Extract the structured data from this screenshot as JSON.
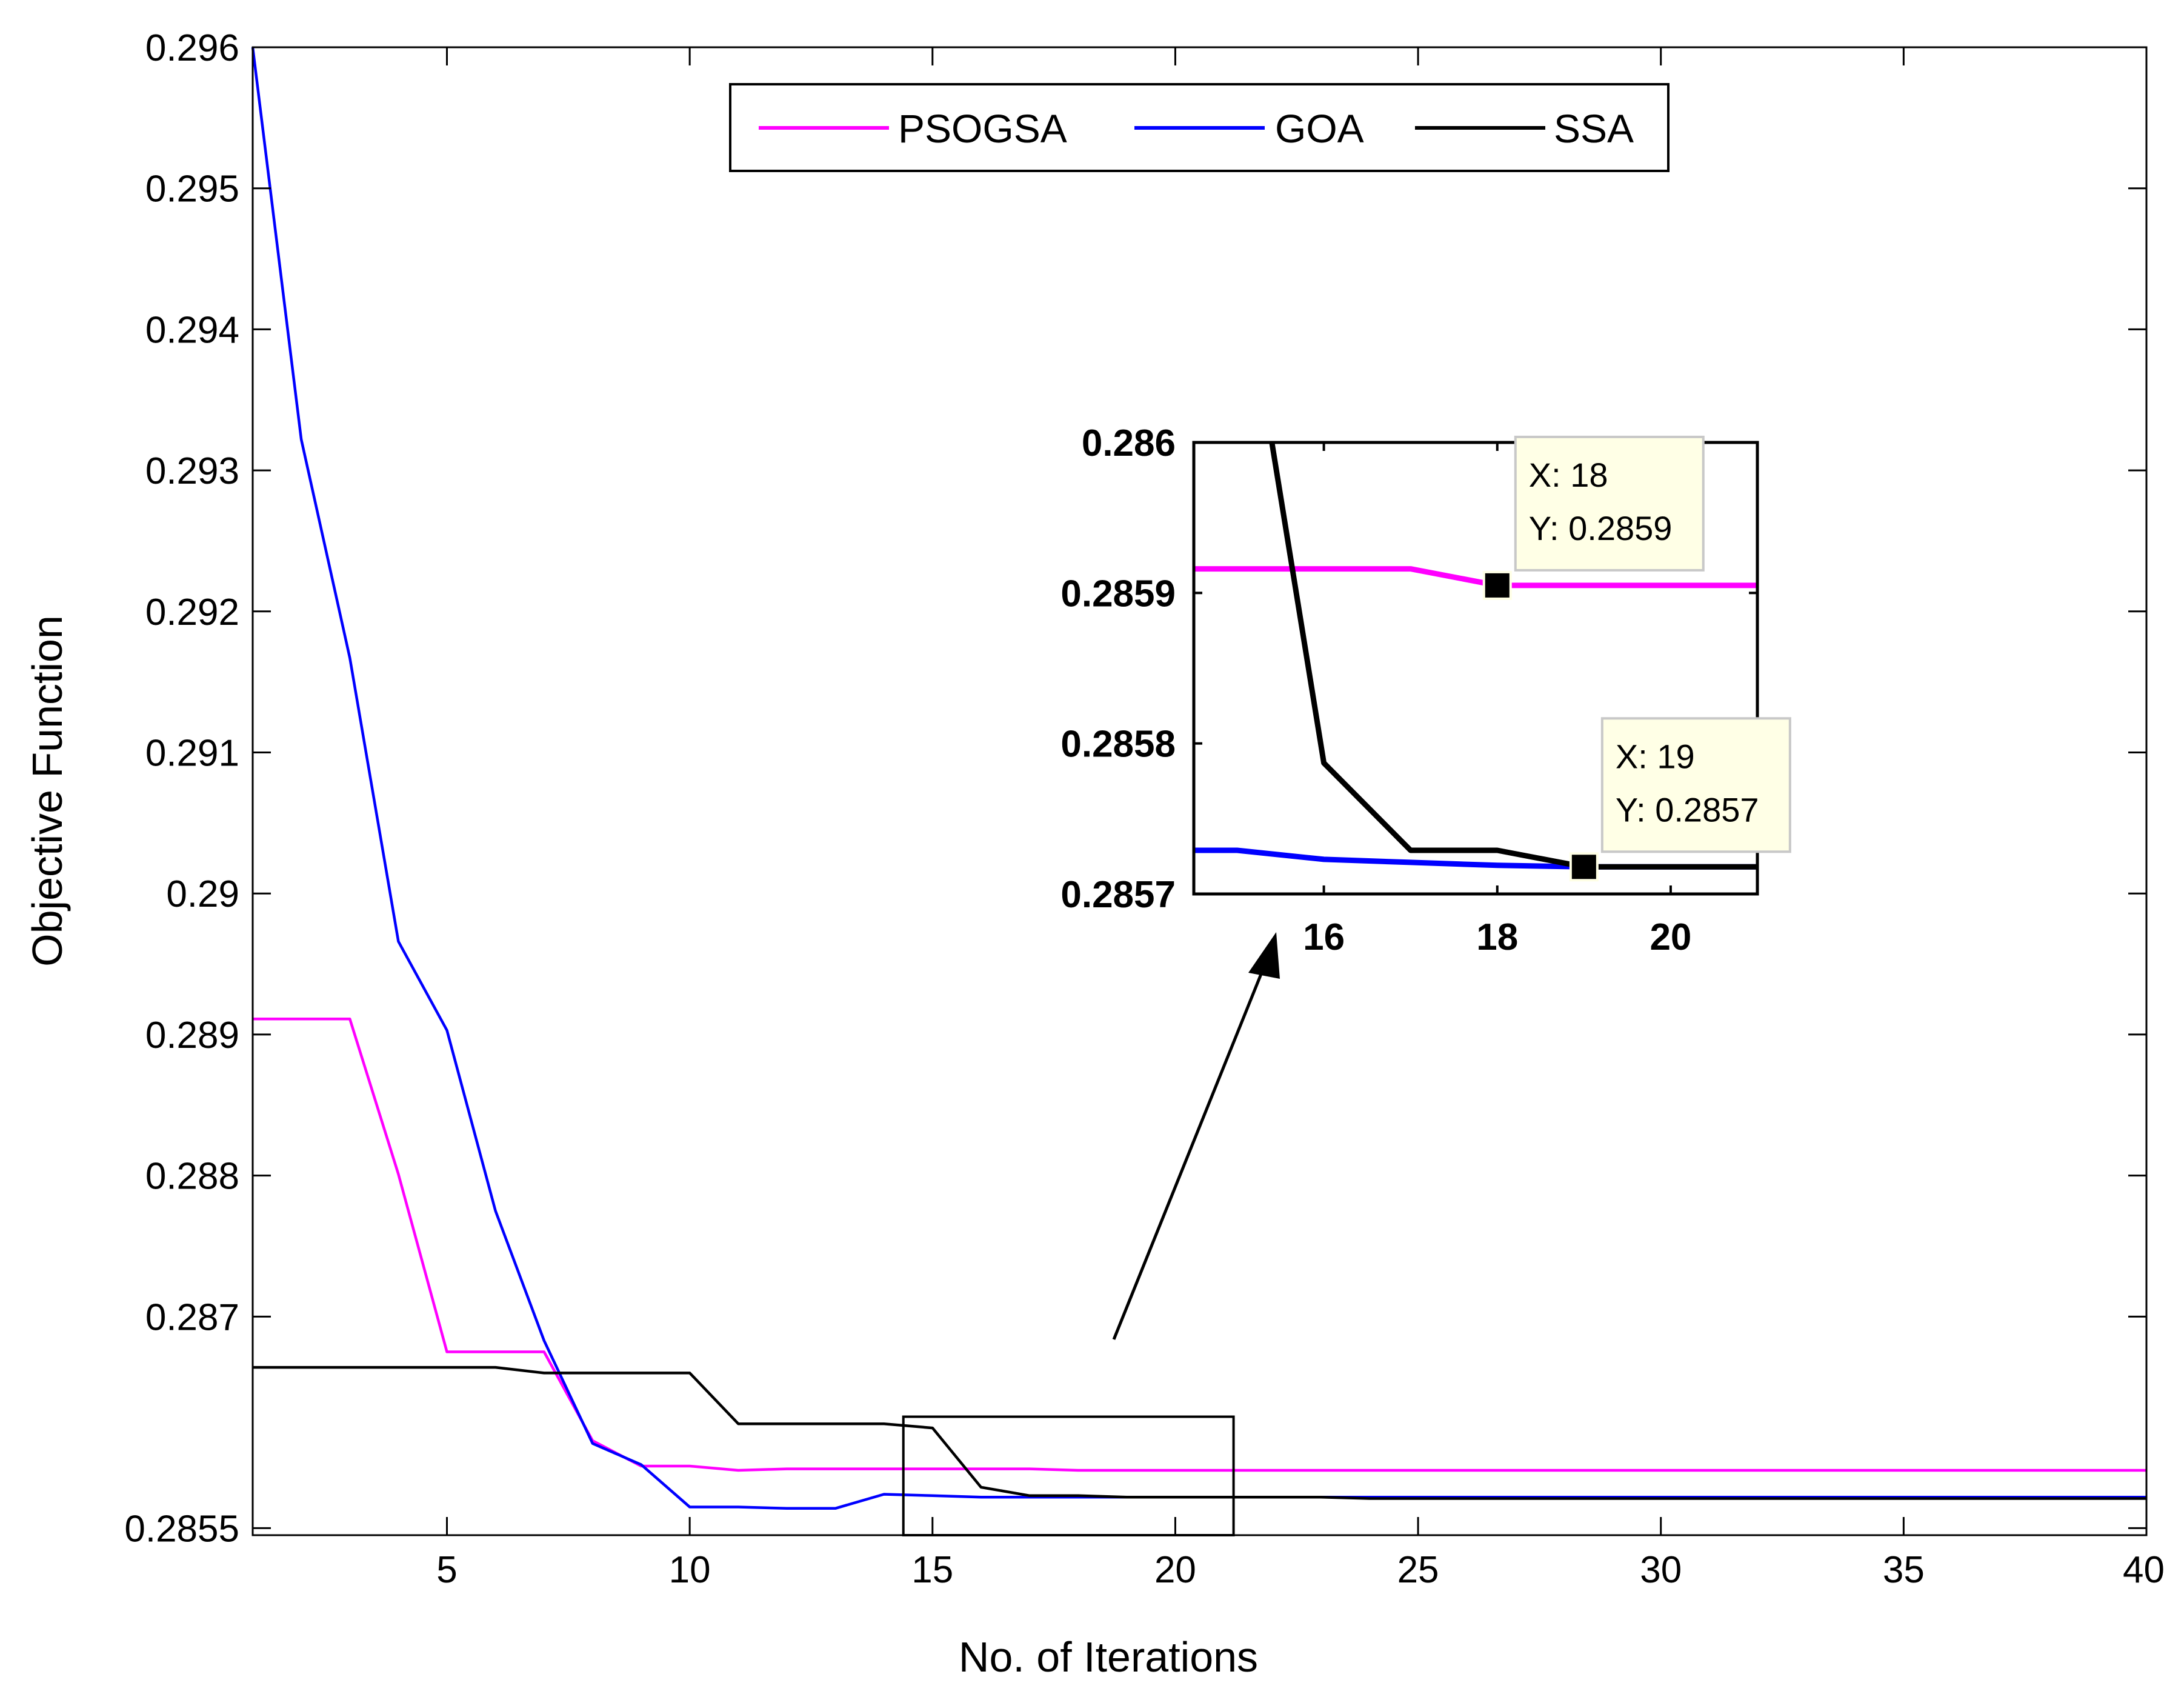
{
  "chart_data": {
    "type": "line",
    "title": "",
    "xlabel": "No. of Iterations",
    "ylabel": "Objective Function",
    "xlim": [
      1,
      40
    ],
    "ylim": [
      0.28545,
      0.296
    ],
    "x_ticks": [
      5,
      10,
      15,
      20,
      25,
      30,
      35,
      40
    ],
    "x_tick_labels": [
      "5",
      "10",
      "15",
      "20",
      "25",
      "30",
      "35",
      "40"
    ],
    "y_ticks": [
      0.2855,
      0.287,
      0.288,
      0.289,
      0.29,
      0.291,
      0.292,
      0.293,
      0.294,
      0.295,
      0.296
    ],
    "y_tick_labels": [
      "0.2855",
      "0.287",
      "0.288",
      "0.289",
      "0.29",
      "0.291",
      "0.292",
      "0.293",
      "0.294",
      "0.295",
      "0.296"
    ],
    "legend_position": "top-center",
    "grid": false,
    "series": [
      {
        "name": "PSOGSA",
        "color": "#ff00ff",
        "x": [
          1,
          2,
          3,
          4,
          5,
          6,
          7,
          8,
          9,
          10,
          11,
          12,
          13,
          14,
          15,
          16,
          17,
          18,
          19,
          20,
          21,
          22,
          23,
          24,
          25,
          26,
          27,
          28,
          29,
          30,
          31,
          32,
          33,
          34,
          35,
          36,
          37,
          38,
          39,
          40
        ],
        "y": [
          0.28911,
          0.28911,
          0.28911,
          0.28801,
          0.28675,
          0.28675,
          0.28675,
          0.28612,
          0.28594,
          0.28594,
          0.28591,
          0.28592,
          0.28592,
          0.28592,
          0.28592,
          0.28592,
          0.28592,
          0.28591,
          0.28591,
          0.28591,
          0.28591,
          0.28591,
          0.28591,
          0.28591,
          0.28591,
          0.28591,
          0.28591,
          0.28591,
          0.28591,
          0.28591,
          0.28591,
          0.28591,
          0.28591,
          0.28591,
          0.28591,
          0.28591,
          0.28591,
          0.28591,
          0.28591,
          0.28591
        ]
      },
      {
        "name": "GOA",
        "color": "#0000ff",
        "x": [
          1,
          2,
          3,
          4,
          5,
          6,
          7,
          8,
          9,
          10,
          11,
          12,
          13,
          14,
          15,
          16,
          17,
          18,
          19,
          20,
          21,
          22,
          23,
          24,
          25,
          26,
          27,
          28,
          29,
          30,
          31,
          32,
          33,
          34,
          35,
          36,
          37,
          38,
          39,
          40
        ],
        "y": [
          0.296,
          0.29322,
          0.29167,
          0.28966,
          0.28903,
          0.28775,
          0.28683,
          0.2861,
          0.28595,
          0.28565,
          0.28565,
          0.28564,
          0.28564,
          0.28574,
          0.28573,
          0.28572,
          0.28572,
          0.28572,
          0.28572,
          0.28572,
          0.28572,
          0.28572,
          0.28572,
          0.28572,
          0.28572,
          0.28572,
          0.28572,
          0.28572,
          0.28572,
          0.28572,
          0.28572,
          0.28572,
          0.28572,
          0.28572,
          0.28572,
          0.28572,
          0.28572,
          0.28572,
          0.28572,
          0.28572
        ]
      },
      {
        "name": "SSA",
        "color": "#000000",
        "x": [
          1,
          2,
          3,
          4,
          5,
          6,
          7,
          8,
          9,
          10,
          11,
          12,
          13,
          14,
          15,
          16,
          17,
          18,
          19,
          20,
          21,
          22,
          23,
          24,
          25,
          26,
          27,
          28,
          29,
          30,
          31,
          32,
          33,
          34,
          35,
          36,
          37,
          38,
          39,
          40
        ],
        "y": [
          0.28664,
          0.28664,
          0.28664,
          0.28664,
          0.28664,
          0.28664,
          0.2866,
          0.2866,
          0.2866,
          0.2866,
          0.28624,
          0.28624,
          0.28624,
          0.28624,
          0.28621,
          0.28579,
          0.28573,
          0.28573,
          0.28572,
          0.28572,
          0.28572,
          0.28572,
          0.28572,
          0.28571,
          0.28571,
          0.28571,
          0.28571,
          0.28571,
          0.28571,
          0.28571,
          0.28571,
          0.28571,
          0.28571,
          0.28571,
          0.28571,
          0.28571,
          0.28571,
          0.28571,
          0.28571,
          0.28571
        ]
      }
    ],
    "inset": {
      "xlim": [
        14.5,
        21
      ],
      "ylim": [
        0.2857,
        0.286
      ],
      "x_ticks": [
        16,
        18,
        20
      ],
      "x_tick_labels": [
        "16",
        "18",
        "20"
      ],
      "y_ticks": [
        0.2857,
        0.2858,
        0.2859,
        0.286
      ],
      "y_tick_labels": [
        "0.2857",
        "0.2858",
        "0.2859",
        "0.286"
      ],
      "zoom_box": {
        "x": [
          14.4,
          21.2
        ],
        "y": [
          0.28545,
          0.28629
        ]
      },
      "series": [
        {
          "name": "PSOGSA",
          "color": "#ff00ff",
          "x": [
            14.5,
            15,
            16,
            17,
            18,
            19,
            20,
            21
          ],
          "y": [
            0.285916,
            0.285916,
            0.285916,
            0.285916,
            0.285905,
            0.285905,
            0.285905,
            0.285905
          ]
        },
        {
          "name": "GOA",
          "color": "#0000ff",
          "x": [
            14.5,
            15,
            16,
            17,
            18,
            19,
            20,
            21
          ],
          "y": [
            0.285729,
            0.285729,
            0.285723,
            0.285721,
            0.285719,
            0.285718,
            0.285718,
            0.285718
          ]
        },
        {
          "name": "SSA",
          "color": "#000000",
          "x": [
            15.4,
            16,
            17,
            18,
            19,
            20,
            21
          ],
          "y": [
            0.286,
            0.285787,
            0.285729,
            0.285729,
            0.285718,
            0.285718,
            0.285718
          ]
        }
      ],
      "datatips": [
        {
          "x": 18,
          "y": 0.285905,
          "line1": "X: 18",
          "line2": "Y: 0.2859"
        },
        {
          "x": 19,
          "y": 0.285718,
          "line1": "X: 19",
          "line2": "Y: 0.2857"
        }
      ]
    }
  }
}
